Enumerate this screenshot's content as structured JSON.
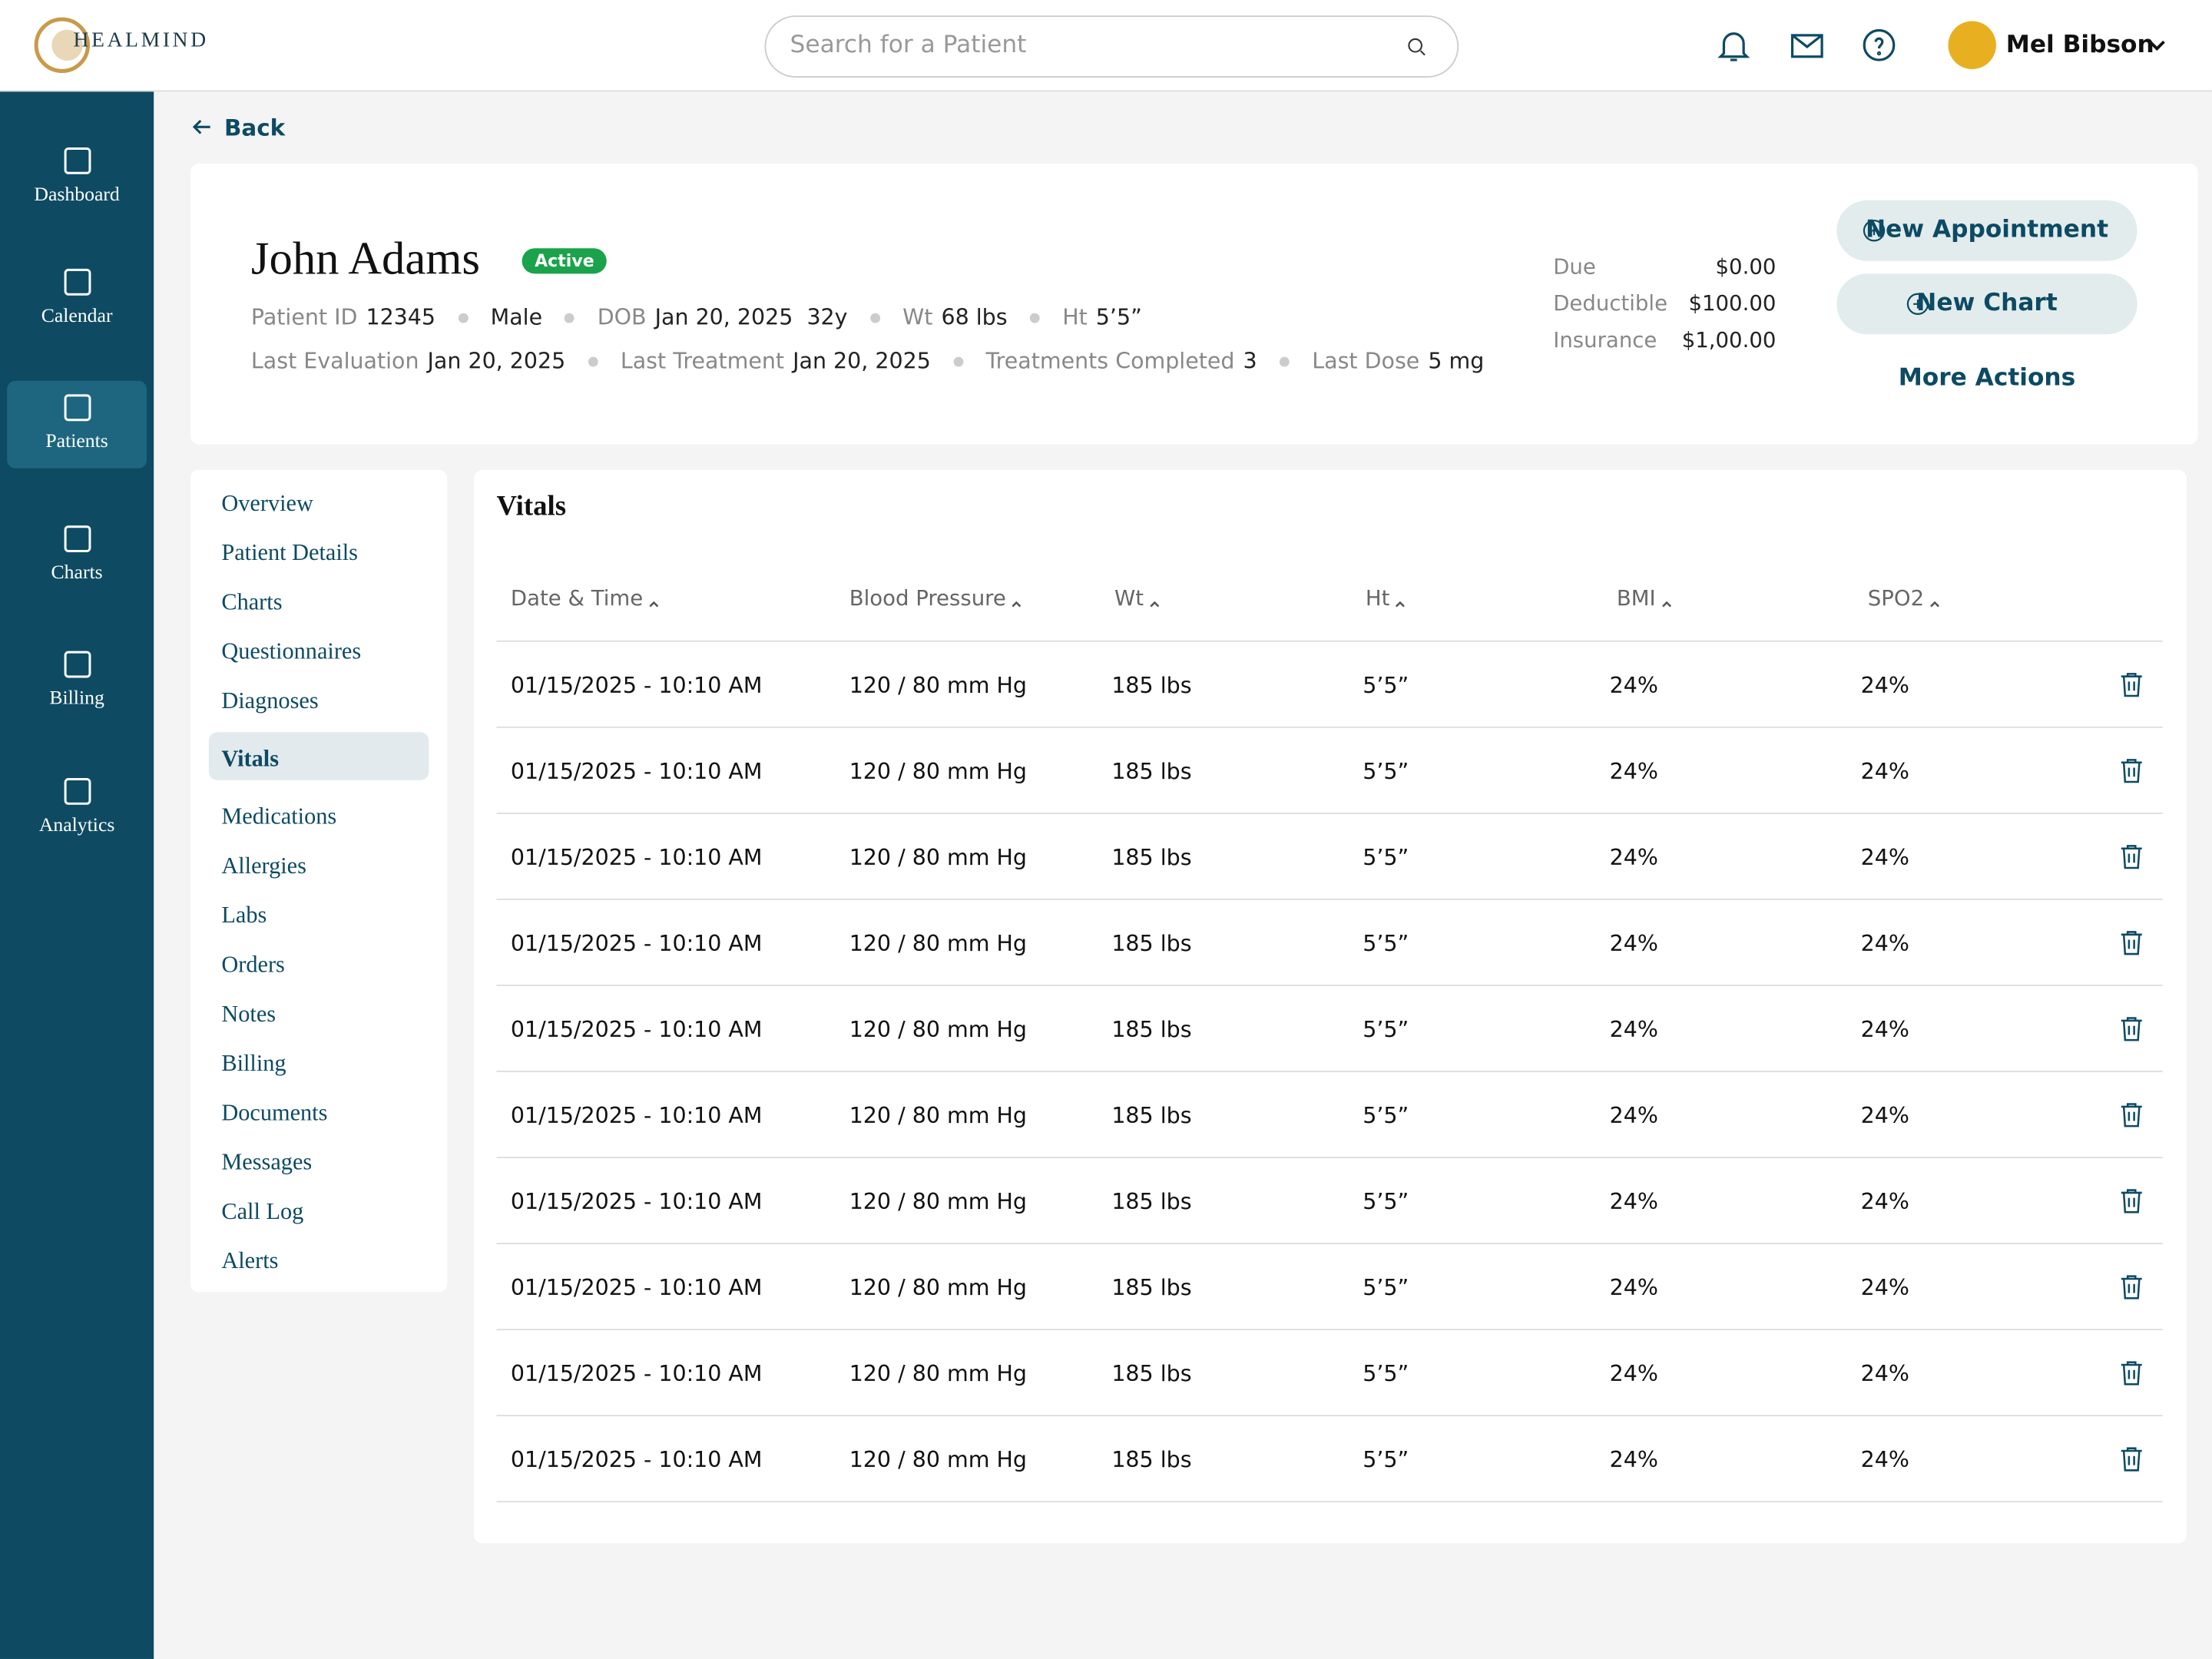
{
  "header": {
    "logo": "HEALMIND",
    "search_placeholder": "Search for a Patient",
    "user_name": "Mel Bibson"
  },
  "sidebar": {
    "items": [
      "Dashboard",
      "Calendar",
      "Patients",
      "Charts",
      "Billing",
      "Analytics"
    ],
    "active": 2
  },
  "back": "Back",
  "patient": {
    "name": "John Adams",
    "status": "Active",
    "info_rows": [
      [
        {
          "label": "Patient ID",
          "value": "12345"
        },
        {
          "value": "Male"
        },
        {
          "label": "DOB",
          "value": "Jan 20, 2025  32y"
        },
        {
          "label": "Wt",
          "value": "68 lbs"
        },
        {
          "label": "Ht",
          "value": "5’5”"
        }
      ],
      [
        {
          "label": "Last Evaluation",
          "value": "Jan 20, 2025"
        },
        {
          "label": "Last Treatment",
          "value": "Jan 20, 2025"
        },
        {
          "label": "Treatments Completed",
          "value": "3"
        },
        {
          "label": "Last Dose",
          "value": "5 mg"
        }
      ]
    ],
    "billing": [
      {
        "label": "Due",
        "value": "$0.00"
      },
      {
        "label": "Deductible",
        "value": "$100.00"
      },
      {
        "label": "Insurance",
        "value": "$1,00.00"
      }
    ],
    "actions": [
      "New Appointment",
      "New Chart"
    ],
    "more_actions": "More Actions"
  },
  "subnav": {
    "items": [
      "Overview",
      "Patient Details",
      "Charts",
      "Questionnaires",
      "Diagnoses",
      "Vitals",
      "Medications",
      "Allergies",
      "Labs",
      "Orders",
      "Notes",
      "Billing",
      "Documents",
      "Messages",
      "Call Log",
      "Alerts"
    ],
    "active": 5
  },
  "vitals": {
    "title": "Vitals",
    "columns": [
      "Date & Time",
      "Blood Pressure",
      "Wt",
      "Ht",
      "BMI",
      "SPO2"
    ],
    "rows": [
      [
        "01/15/2025 - 10:10 AM",
        "120 / 80 mm Hg",
        "185 lbs",
        "5’5”",
        "24%",
        "24%"
      ],
      [
        "01/15/2025 - 10:10 AM",
        "120 / 80 mm Hg",
        "185 lbs",
        "5’5”",
        "24%",
        "24%"
      ],
      [
        "01/15/2025 - 10:10 AM",
        "120 / 80 mm Hg",
        "185 lbs",
        "5’5”",
        "24%",
        "24%"
      ],
      [
        "01/15/2025 - 10:10 AM",
        "120 / 80 mm Hg",
        "185 lbs",
        "5’5”",
        "24%",
        "24%"
      ],
      [
        "01/15/2025 - 10:10 AM",
        "120 / 80 mm Hg",
        "185 lbs",
        "5’5”",
        "24%",
        "24%"
      ],
      [
        "01/15/2025 - 10:10 AM",
        "120 / 80 mm Hg",
        "185 lbs",
        "5’5”",
        "24%",
        "24%"
      ],
      [
        "01/15/2025 - 10:10 AM",
        "120 / 80 mm Hg",
        "185 lbs",
        "5’5”",
        "24%",
        "24%"
      ],
      [
        "01/15/2025 - 10:10 AM",
        "120 / 80 mm Hg",
        "185 lbs",
        "5’5”",
        "24%",
        "24%"
      ],
      [
        "01/15/2025 - 10:10 AM",
        "120 / 80 mm Hg",
        "185 lbs",
        "5’5”",
        "24%",
        "24%"
      ],
      [
        "01/15/2025 - 10:10 AM",
        "120 / 80 mm Hg",
        "185 lbs",
        "5’5”",
        "24%",
        "24%"
      ]
    ]
  }
}
